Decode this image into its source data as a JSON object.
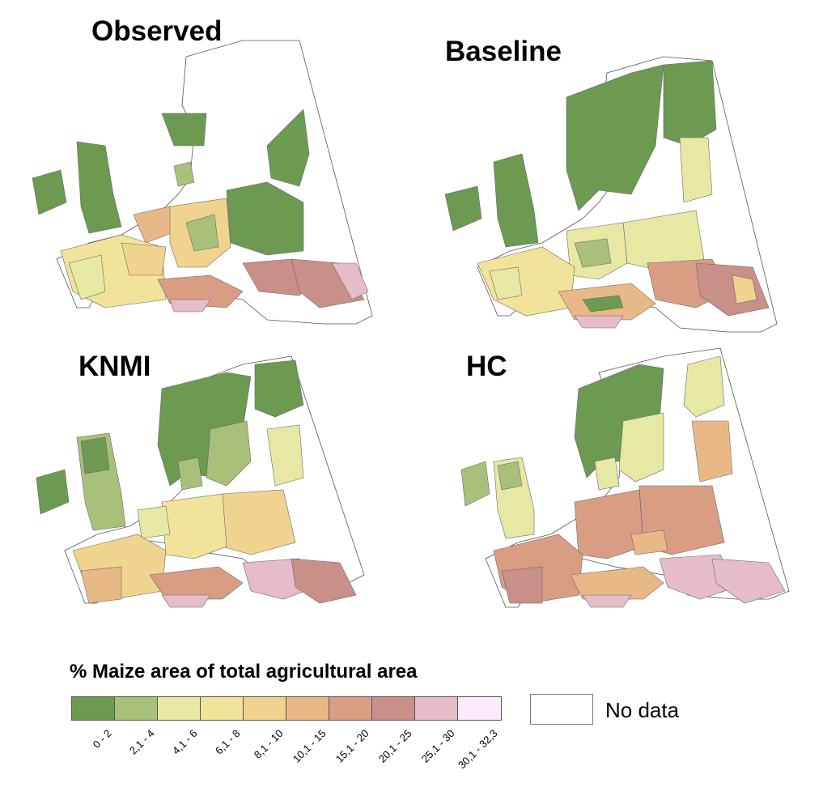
{
  "panels": [
    {
      "key": "observed",
      "title": "Observed"
    },
    {
      "key": "baseline",
      "title": "Baseline"
    },
    {
      "key": "knmi",
      "title": "KNMI"
    },
    {
      "key": "hc",
      "title": "HC"
    }
  ],
  "legend": {
    "title": "% Maize area of total agricultural area",
    "classes": [
      {
        "label": "0 - 2",
        "color": "#6b9a50"
      },
      {
        "label": "2,1 - 4",
        "color": "#a9c07a"
      },
      {
        "label": "4,1 - 6",
        "color": "#e6e8a4"
      },
      {
        "label": "6,1 - 8",
        "color": "#f1e39a"
      },
      {
        "label": "8,1 - 10",
        "color": "#f0d38e"
      },
      {
        "label": "10,1 - 15",
        "color": "#e8b987"
      },
      {
        "label": "15,1 - 20",
        "color": "#d99d84"
      },
      {
        "label": "20,1 - 25",
        "color": "#c98f89"
      },
      {
        "label": "25,1 - 30",
        "color": "#e5bcc8"
      },
      {
        "label": "30,1 - 32,3",
        "color": "#fbebf8"
      }
    ],
    "no_data_label": "No data",
    "no_data_color": "#ffffff"
  }
}
